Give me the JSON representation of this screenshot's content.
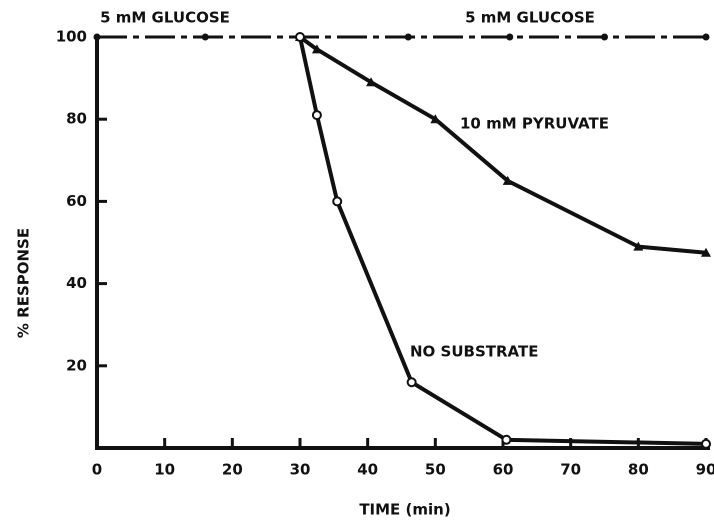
{
  "chart_data": {
    "type": "line",
    "xlabel": "TIME (min)",
    "ylabel": "% RESPONSE",
    "xlim": [
      0,
      90
    ],
    "ylim": [
      0,
      100
    ],
    "xticks": [
      0,
      10,
      20,
      30,
      40,
      50,
      60,
      70,
      80,
      90
    ],
    "yticks": [
      20,
      40,
      60,
      80,
      100
    ],
    "series": [
      {
        "name": "5 mM GLUCOSE",
        "color": "#111111",
        "marker": "dot",
        "style": "dashdot",
        "x": [
          0,
          16,
          30,
          46,
          61,
          75,
          90
        ],
        "values": [
          100,
          100,
          100,
          100,
          100,
          100,
          100
        ]
      },
      {
        "name": "10 mM PYRUVATE",
        "color": "#111111",
        "marker": "triangle",
        "style": "solid",
        "x": [
          30,
          32.5,
          40.5,
          50,
          60.7,
          80,
          90
        ],
        "values": [
          100,
          97,
          89,
          80,
          65,
          49,
          47.5
        ]
      },
      {
        "name": "NO SUBSTRATE",
        "color": "#111111",
        "marker": "circle",
        "style": "solid",
        "x": [
          30,
          32.5,
          35.5,
          46.5,
          60.5,
          90
        ],
        "values": [
          100,
          81,
          60,
          16,
          2,
          1
        ]
      }
    ]
  }
}
